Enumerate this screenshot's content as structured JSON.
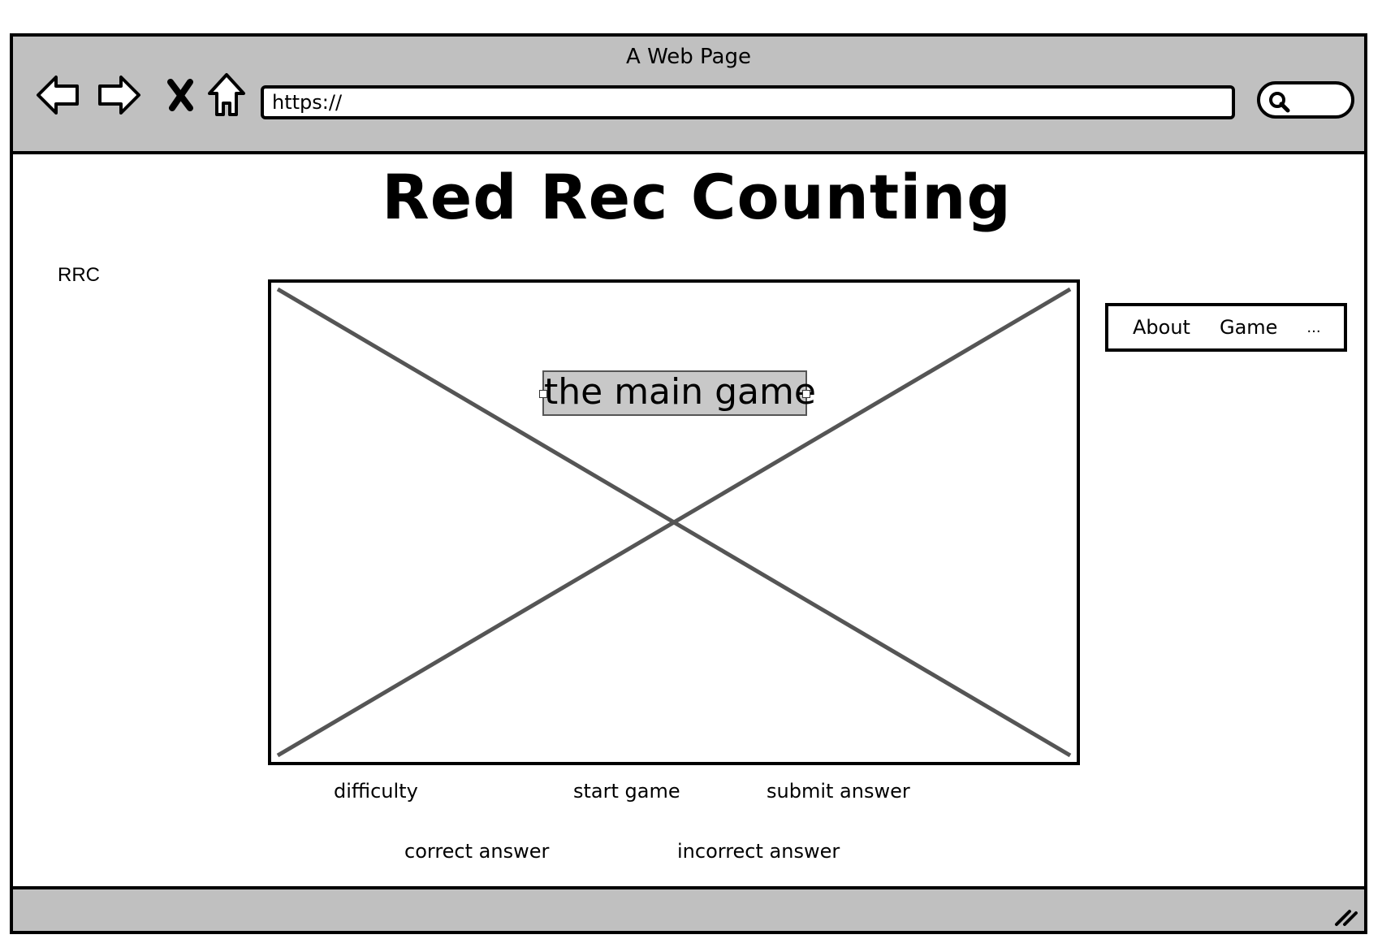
{
  "window": {
    "title": "A Web Page",
    "url": "https://"
  },
  "toolbar": {
    "back_icon": "arrow-left-icon",
    "forward_icon": "arrow-right-icon",
    "stop_icon": "close-icon",
    "home_icon": "home-icon",
    "search_icon": "search-icon"
  },
  "page": {
    "title": "Red Rec Counting",
    "logo": "RRC",
    "game_placeholder_label": "the main game"
  },
  "nav": {
    "items": [
      {
        "label": "About"
      },
      {
        "label": "Game"
      },
      {
        "label": "..."
      }
    ]
  },
  "controls": {
    "difficulty": "difficulty",
    "start_game": "start game",
    "submit_answer": "submit answer",
    "correct_answer": "correct answer",
    "incorrect_answer": "incorrect answer"
  },
  "colors": {
    "chrome": "#c0c0c0",
    "placeholder_cross": "#555555",
    "label_fill": "#c8c8c8"
  }
}
